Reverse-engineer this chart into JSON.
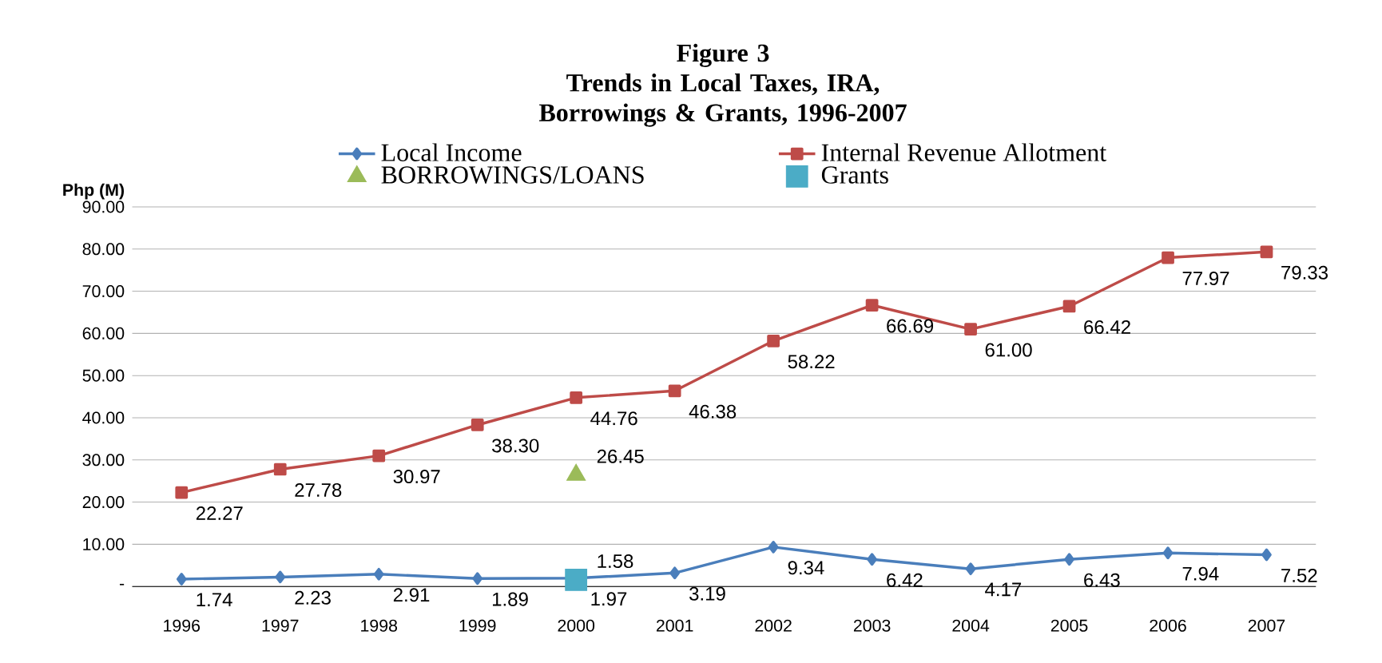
{
  "chart_data": {
    "type": "line",
    "title": "Figure  3",
    "subtitle": "Trends in Local Taxes, IRA, Borrowings & Grants, 1996-2007",
    "ylabel": "Php (M)",
    "categories": [
      "1996",
      "1997",
      "1998",
      "1999",
      "2000",
      "2001",
      "2002",
      "2003",
      "2004",
      "2005",
      "2006",
      "2007"
    ],
    "series": [
      {
        "name": "Local Income",
        "color": "#4a7ebb",
        "marker": "diamond",
        "values": [
          1.74,
          2.23,
          2.91,
          1.89,
          1.97,
          3.19,
          9.34,
          6.42,
          4.17,
          6.43,
          7.94,
          7.52
        ],
        "value_labels": [
          "1.74",
          "2.23",
          "2.91",
          "1.89",
          "1.97",
          "3.19",
          "9.34",
          "6.42",
          "4.17",
          "6.43",
          "7.94",
          "7.52"
        ]
      },
      {
        "name": "Internal Revenue Allotment",
        "color": "#be4b48",
        "marker": "square",
        "values": [
          22.27,
          27.78,
          30.97,
          38.3,
          44.76,
          46.38,
          58.22,
          66.69,
          61.0,
          66.42,
          77.97,
          79.33
        ],
        "value_labels": [
          "22.27",
          "27.78",
          "30.97",
          "38.30",
          "44.76",
          "46.38",
          "58.22",
          "66.69",
          "61.00",
          "66.42",
          "77.97",
          "79.33"
        ]
      },
      {
        "name": "BORROWINGS/LOANS",
        "type": "scatter",
        "color": "#9bbb59",
        "marker": "triangle",
        "values": [
          null,
          null,
          null,
          null,
          26.45,
          null,
          null,
          null,
          null,
          null,
          null,
          null
        ],
        "value_labels": [
          null,
          null,
          null,
          null,
          "26.45",
          null,
          null,
          null,
          null,
          null,
          null,
          null
        ]
      },
      {
        "name": "Grants",
        "type": "scatter",
        "color": "#4bacc6",
        "marker": "square",
        "values": [
          null,
          null,
          null,
          null,
          1.58,
          null,
          null,
          null,
          null,
          null,
          null,
          null
        ],
        "value_labels": [
          null,
          null,
          null,
          null,
          "1.58",
          null,
          null,
          null,
          null,
          null,
          null,
          null
        ]
      }
    ],
    "ylim": [
      0,
      90
    ],
    "yticks": [
      {
        "value": 0,
        "label": "-"
      },
      {
        "value": 10,
        "label": "10.00"
      },
      {
        "value": 20,
        "label": "20.00"
      },
      {
        "value": 30,
        "label": "30.00"
      },
      {
        "value": 40,
        "label": "40.00"
      },
      {
        "value": 50,
        "label": "50.00"
      },
      {
        "value": 60,
        "label": "60.00"
      },
      {
        "value": 70,
        "label": "70.00"
      },
      {
        "value": 80,
        "label": "80.00"
      },
      {
        "value": 90,
        "label": "90.00"
      }
    ],
    "grid": "y",
    "legend": "top"
  }
}
